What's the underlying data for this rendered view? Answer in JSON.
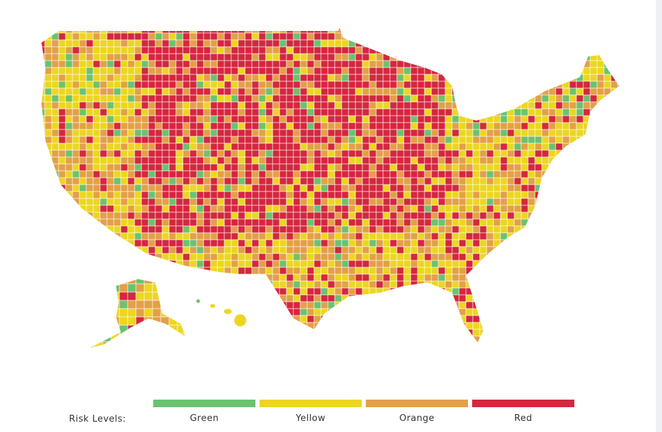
{
  "legend": {
    "title": "Risk Levels:",
    "levels": [
      {
        "label": "Green",
        "color": "#6cc26f"
      },
      {
        "label": "Yellow",
        "color": "#ecd621"
      },
      {
        "label": "Orange",
        "color": "#e3a047"
      },
      {
        "label": "Red",
        "color": "#d5273f"
      }
    ]
  }
}
